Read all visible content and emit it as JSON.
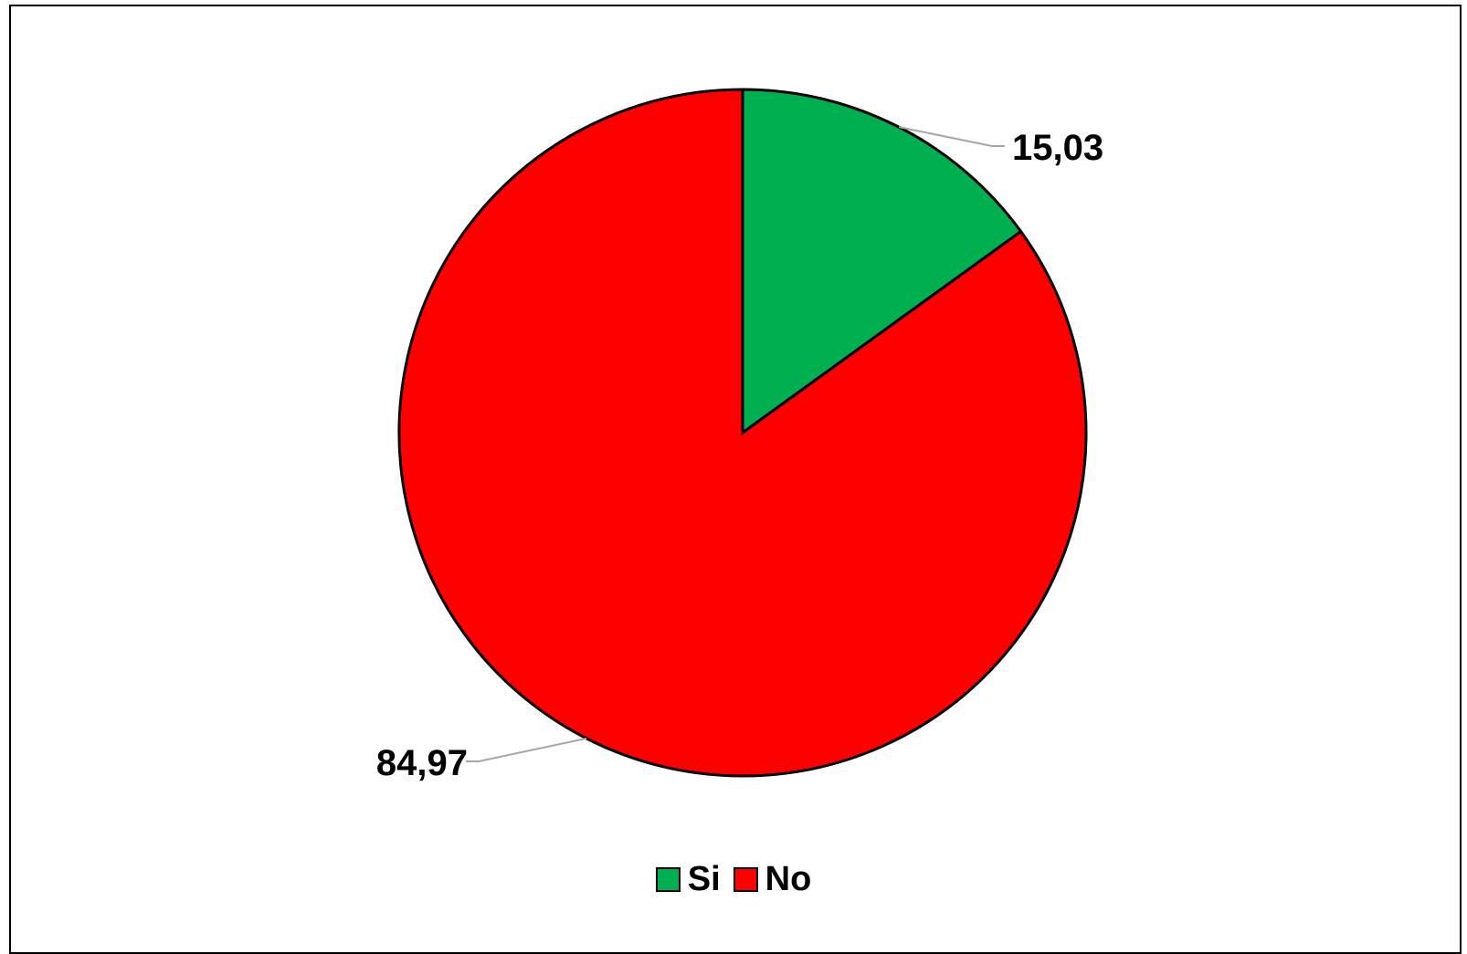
{
  "chart_data": {
    "type": "pie",
    "title": "",
    "categories": [
      "Si",
      "No"
    ],
    "values": [
      15.03,
      84.97
    ],
    "data_labels": [
      "15,03",
      "84,97"
    ],
    "colors": [
      "#00b050",
      "#ff0000"
    ],
    "start_angle": "12 o'clock",
    "direction": "clockwise",
    "legend": "bottom-center"
  }
}
